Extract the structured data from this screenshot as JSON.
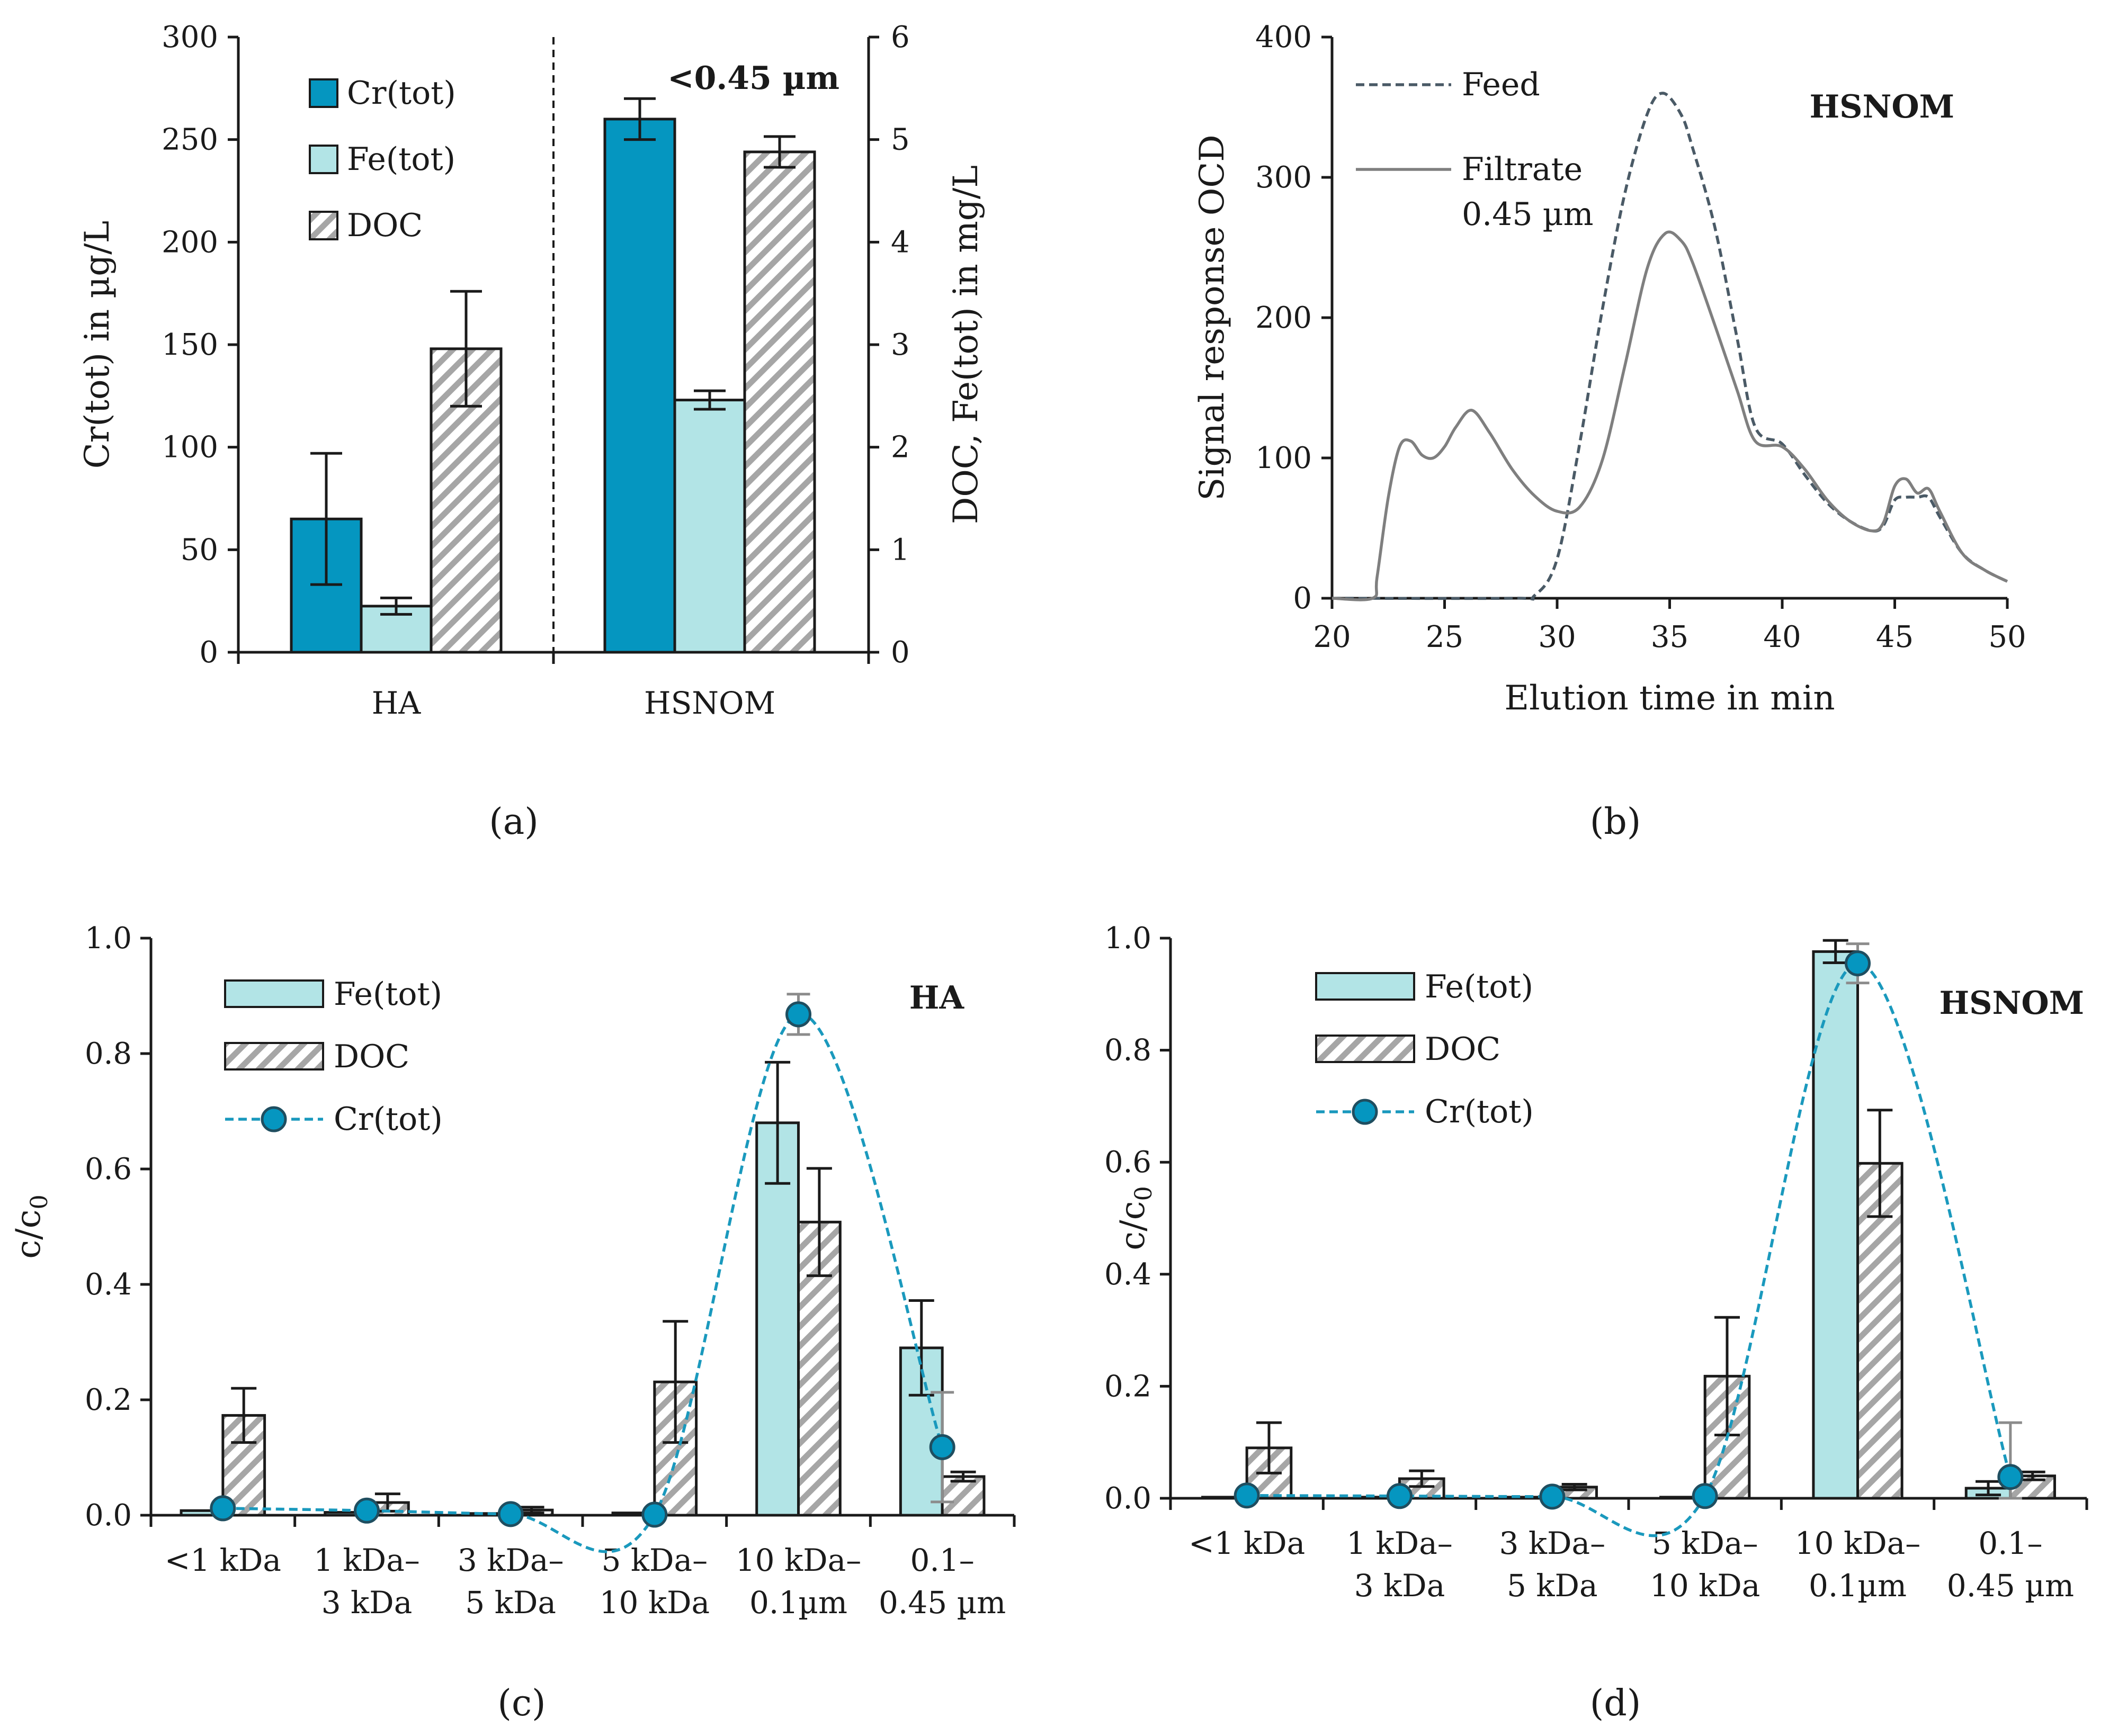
{
  "colors": {
    "cr_bar": "#0596c0",
    "fe_bar": "#b2e4e6",
    "doc_hatch": "#a6a6a6",
    "cr_line": "#1a99bd",
    "feed_line": "#4a5a66",
    "filtrate_line": "#7f7f7f",
    "axis": "#1a1a1a"
  },
  "chart_data": [
    {
      "panel": "a",
      "panel_label": "a",
      "type": "bar",
      "annotation": "<0.45 µm",
      "categories": [
        "HA",
        "HSNOM"
      ],
      "ylabel_left": "Cr(tot) in µg/L",
      "ylabel_right": "DOC, Fe(tot) in mg/L",
      "ylim_left": [
        0,
        300
      ],
      "ylim_right": [
        0,
        6
      ],
      "yticks_left": [
        "0",
        "50",
        "100",
        "150",
        "200",
        "250",
        "300"
      ],
      "yticks_right": [
        "0",
        "1",
        "2",
        "3",
        "4",
        "5",
        "6"
      ],
      "legend": [
        "Cr(tot)",
        "Fe(tot)",
        "DOC"
      ],
      "series": [
        {
          "name": "Cr(tot)",
          "axis": "left",
          "values": [
            65,
            260
          ],
          "errors": [
            32,
            10
          ]
        },
        {
          "name": "Fe(tot)",
          "axis": "right",
          "values": [
            0.45,
            2.46
          ],
          "errors": [
            0.08,
            0.09
          ]
        },
        {
          "name": "DOC",
          "axis": "right",
          "values": [
            2.96,
            4.88
          ],
          "errors": [
            0.56,
            0.15
          ]
        }
      ]
    },
    {
      "panel": "b",
      "panel_label": "b",
      "type": "line",
      "annotation": "HSNOM",
      "xlabel": "Elution time in min",
      "ylabel": "Signal response OCD",
      "xlim": [
        20,
        50
      ],
      "ylim": [
        0,
        400
      ],
      "xticks": [
        "20",
        "25",
        "30",
        "35",
        "40",
        "45",
        "50"
      ],
      "yticks": [
        "0",
        "100",
        "200",
        "300",
        "400"
      ],
      "legend": [
        "Feed",
        "Filtrate",
        "0.45 µm"
      ],
      "series": [
        {
          "name": "Feed",
          "style": "dashed",
          "x": [
            20,
            28,
            29,
            30,
            31,
            32,
            33,
            34,
            34.7,
            35.5,
            36,
            37,
            38,
            38.8,
            40,
            41,
            42,
            43,
            44,
            44.5,
            45,
            45.5,
            46,
            46.5,
            47,
            48,
            49,
            50
          ],
          "y": [
            0,
            0,
            2,
            28,
            110,
            205,
            288,
            345,
            360,
            345,
            322,
            265,
            185,
            122,
            110,
            88,
            68,
            55,
            48,
            52,
            70,
            72,
            72,
            72,
            58,
            32,
            20,
            12
          ]
        },
        {
          "name": "Filtrate",
          "style": "solid",
          "x": [
            20,
            21.8,
            22,
            22.5,
            23,
            23.5,
            24,
            24.5,
            25,
            25.5,
            26.2,
            27,
            28,
            29,
            30,
            31,
            32,
            33,
            34,
            34.8,
            35.5,
            36,
            37,
            38,
            38.8,
            40,
            41,
            42,
            43,
            44,
            44.5,
            45,
            45.5,
            46,
            46.5,
            47,
            48,
            49,
            50
          ],
          "y": [
            0,
            0,
            15,
            72,
            108,
            112,
            102,
            100,
            108,
            122,
            134,
            118,
            92,
            73,
            62,
            65,
            98,
            165,
            235,
            260,
            255,
            240,
            195,
            148,
            112,
            108,
            92,
            70,
            55,
            48,
            54,
            80,
            85,
            75,
            78,
            62,
            32,
            20,
            12
          ]
        }
      ]
    },
    {
      "panel": "c",
      "panel_label": "c",
      "type": "bar",
      "annotation": "HA",
      "ylabel": "c/c",
      "ylabel_sub": "0",
      "ylim": [
        0,
        1.0
      ],
      "yticks": [
        "0.0",
        "0.2",
        "0.4",
        "0.6",
        "0.8",
        "1.0"
      ],
      "categories": [
        [
          "<1 kDa"
        ],
        [
          "1 kDa–",
          "3 kDa"
        ],
        [
          "3 kDa–",
          "5 kDa"
        ],
        [
          "5 kDa–",
          "10 kDa"
        ],
        [
          "10 kDa–",
          "0.1µm"
        ],
        [
          "0.1–",
          "0.45 µm"
        ]
      ],
      "legend": [
        "Fe(tot)",
        "DOC",
        "Cr(tot)"
      ],
      "series": [
        {
          "name": "Fe(tot)",
          "type": "bar",
          "values": [
            0.008,
            0.005,
            0.003,
            0.004,
            0.68,
            0.29
          ],
          "errors": [
            0,
            0,
            0,
            0,
            0.105,
            0.082
          ]
        },
        {
          "name": "DOC",
          "type": "bar",
          "values": [
            0.173,
            0.022,
            0.009,
            0.231,
            0.508,
            0.067
          ],
          "errors": [
            0.047,
            0.015,
            0.005,
            0.105,
            0.093,
            0.008
          ]
        },
        {
          "name": "Cr(tot)",
          "type": "line",
          "values": [
            0.012,
            0.008,
            0.002,
            0.001,
            0.868,
            0.118
          ],
          "errors": [
            0,
            0,
            0,
            0,
            0.035,
            0.095
          ]
        }
      ]
    },
    {
      "panel": "d",
      "panel_label": "d",
      "type": "bar",
      "annotation": "HSNOM",
      "ylabel": "c/c",
      "ylabel_sub": "0",
      "ylim": [
        0,
        1.0
      ],
      "yticks": [
        "0.0",
        "0.2",
        "0.4",
        "0.6",
        "0.8",
        "1.0"
      ],
      "categories": [
        [
          "<1 kDa"
        ],
        [
          "1 kDa–",
          "3 kDa"
        ],
        [
          "3 kDa–",
          "5 kDa"
        ],
        [
          "5 kDa–",
          "10 kDa"
        ],
        [
          "10 kDa–",
          "0.1µm"
        ],
        [
          "0.1–",
          "0.45 µm"
        ]
      ],
      "legend": [
        "Fe(tot)",
        "DOC",
        "Cr(tot)"
      ],
      "series": [
        {
          "name": "Fe(tot)",
          "type": "bar",
          "values": [
            0.002,
            0.002,
            0.002,
            0.002,
            0.976,
            0.018
          ],
          "errors": [
            0,
            0,
            0,
            0,
            0.02,
            0.012
          ]
        },
        {
          "name": "DOC",
          "type": "bar",
          "values": [
            0.09,
            0.035,
            0.02,
            0.218,
            0.598,
            0.04
          ],
          "errors": [
            0.045,
            0.014,
            0.005,
            0.105,
            0.095,
            0.007
          ]
        },
        {
          "name": "Cr(tot)",
          "type": "line",
          "values": [
            0.005,
            0.004,
            0.003,
            0.004,
            0.955,
            0.038
          ],
          "errors": [
            0,
            0,
            0,
            0,
            0.035,
            0.097
          ]
        }
      ]
    }
  ]
}
